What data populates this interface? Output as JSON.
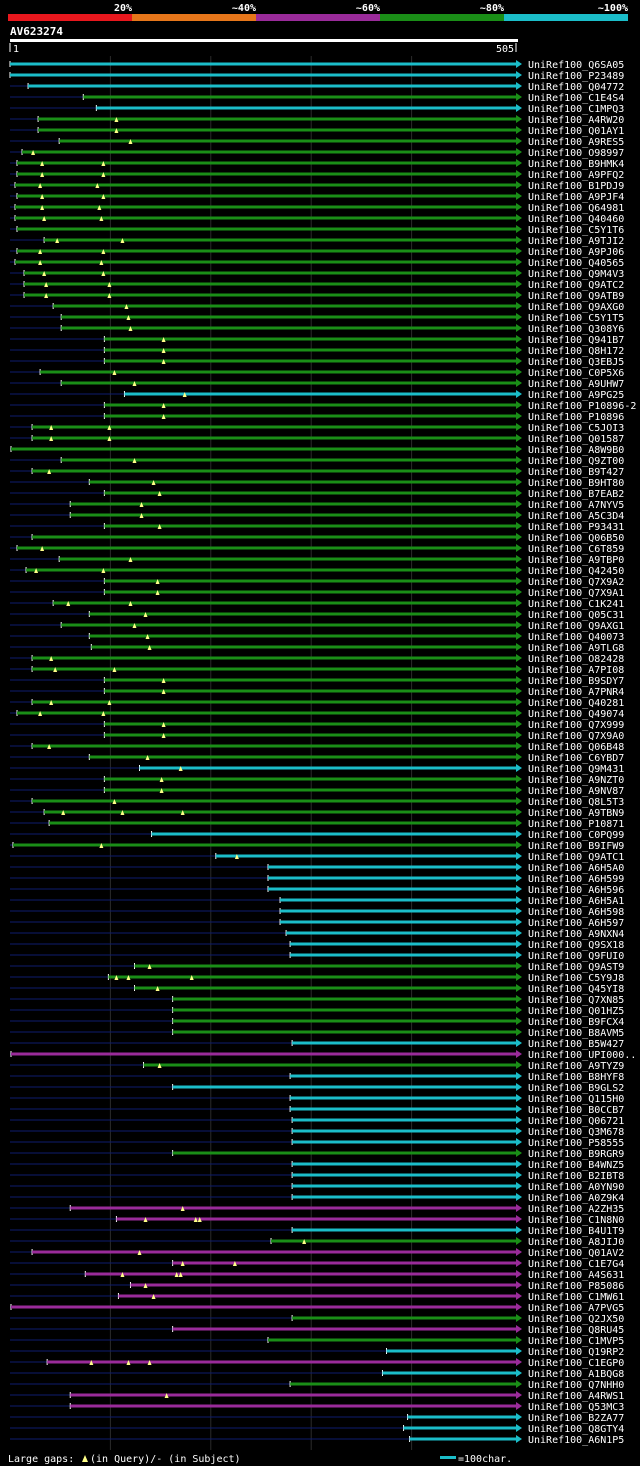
{
  "query": "AV623274",
  "scale": {
    "start": "1",
    "end": "505"
  },
  "identity_legend": [
    {
      "label": "20%",
      "color": "#e8171d"
    },
    {
      "label": "~40%",
      "color": "#e6761a"
    },
    {
      "label": "~60%",
      "color": "#9a2b9a"
    },
    {
      "label": "~80%",
      "color": "#1a8e17"
    },
    {
      "label": "~100%",
      "color": "#1bbdc9"
    }
  ],
  "footer": {
    "gaps_prefix": "Large gaps: ",
    "gaps_query": "(in Query)/",
    "gaps_dash": "-",
    "gaps_subject": " (in Subject)",
    "scale_note": "=100char."
  },
  "chart_data": {
    "type": "alignment-overview",
    "title": "AV623274",
    "x_range": [
      1,
      505
    ],
    "units": "query residue",
    "hits": [
      {
        "id": "UniRef100_Q6SA05",
        "start": 1,
        "end": 505,
        "identity": "~100%"
      },
      {
        "id": "UniRef100_P23489",
        "start": 1,
        "end": 505,
        "identity": "~100%"
      },
      {
        "id": "UniRef100_Q04772",
        "start": 19,
        "end": 505,
        "identity": "~100%"
      },
      {
        "id": "UniRef100_C1E4S4",
        "start": 74,
        "end": 505,
        "identity": "~80%"
      },
      {
        "id": "UniRef100_C1MPQ3",
        "start": 87,
        "end": 505,
        "identity": "~100%"
      },
      {
        "id": "UniRef100_A4RW20",
        "start": 29,
        "end": 505,
        "identity": "~80%",
        "gaps": [
          107
        ]
      },
      {
        "id": "UniRef100_Q01AY1",
        "start": 29,
        "end": 505,
        "identity": "~80%",
        "gaps": [
          107
        ]
      },
      {
        "id": "UniRef100_A9RES5",
        "start": 50,
        "end": 505,
        "identity": "~80%",
        "gaps": [
          121
        ]
      },
      {
        "id": "UniRef100_O98997",
        "start": 13,
        "end": 505,
        "identity": "~80%",
        "gaps": [
          24
        ]
      },
      {
        "id": "UniRef100_B9HMK4",
        "start": 8,
        "end": 505,
        "identity": "~80%",
        "gaps": [
          33,
          94
        ]
      },
      {
        "id": "UniRef100_A9PFQ2",
        "start": 8,
        "end": 505,
        "identity": "~80%",
        "gaps": [
          33,
          94
        ]
      },
      {
        "id": "UniRef100_B1PDJ9",
        "start": 6,
        "end": 505,
        "identity": "~80%",
        "gaps": [
          31,
          88
        ]
      },
      {
        "id": "UniRef100_A9PJF4",
        "start": 8,
        "end": 505,
        "identity": "~80%",
        "gaps": [
          33,
          94
        ]
      },
      {
        "id": "UniRef100_Q64981",
        "start": 6,
        "end": 505,
        "identity": "~80%",
        "gaps": [
          33,
          90
        ]
      },
      {
        "id": "UniRef100_Q40460",
        "start": 6,
        "end": 505,
        "identity": "~80%",
        "gaps": [
          35,
          92
        ]
      },
      {
        "id": "UniRef100_C5Y1T6",
        "start": 8,
        "end": 505,
        "identity": "~80%"
      },
      {
        "id": "UniRef100_A9TJI2",
        "start": 35,
        "end": 505,
        "identity": "~80%",
        "gaps": [
          48,
          113
        ]
      },
      {
        "id": "UniRef100_A9PJ06",
        "start": 8,
        "end": 505,
        "identity": "~80%",
        "gaps": [
          31,
          94
        ]
      },
      {
        "id": "UniRef100_Q40565",
        "start": 6,
        "end": 505,
        "identity": "~80%",
        "gaps": [
          31,
          92
        ]
      },
      {
        "id": "UniRef100_Q9M4V3",
        "start": 15,
        "end": 505,
        "identity": "~80%",
        "gaps": [
          35,
          94
        ]
      },
      {
        "id": "UniRef100_Q9ATC2",
        "start": 15,
        "end": 505,
        "identity": "~80%",
        "gaps": [
          37,
          100
        ]
      },
      {
        "id": "UniRef100_Q9ATB9",
        "start": 15,
        "end": 505,
        "identity": "~80%",
        "gaps": [
          37,
          100
        ]
      },
      {
        "id": "UniRef100_Q9AXG0",
        "start": 44,
        "end": 505,
        "identity": "~80%",
        "gaps": [
          117
        ]
      },
      {
        "id": "UniRef100_C5Y1T5",
        "start": 52,
        "end": 505,
        "identity": "~80%",
        "gaps": [
          119
        ]
      },
      {
        "id": "UniRef100_Q308Y6",
        "start": 52,
        "end": 505,
        "identity": "~80%",
        "gaps": [
          121
        ]
      },
      {
        "id": "UniRef100_Q941B7",
        "start": 95,
        "end": 505,
        "identity": "~80%",
        "gaps": [
          154
        ]
      },
      {
        "id": "UniRef100_Q8H172",
        "start": 95,
        "end": 505,
        "identity": "~80%",
        "gaps": [
          154
        ]
      },
      {
        "id": "UniRef100_Q3EBJ5",
        "start": 95,
        "end": 505,
        "identity": "~80%",
        "gaps": [
          154
        ]
      },
      {
        "id": "UniRef100_C0P5X6",
        "start": 31,
        "end": 505,
        "identity": "~80%",
        "gaps": [
          105
        ]
      },
      {
        "id": "UniRef100_A9UHW7",
        "start": 52,
        "end": 505,
        "identity": "~80%",
        "gaps": [
          125
        ]
      },
      {
        "id": "UniRef100_A9PG25",
        "start": 115,
        "end": 505,
        "identity": "~100%",
        "gaps": [
          175
        ]
      },
      {
        "id": "UniRef100_P10896-2",
        "start": 95,
        "end": 505,
        "identity": "~80%",
        "gaps": [
          154
        ]
      },
      {
        "id": "UniRef100_P10896",
        "start": 95,
        "end": 505,
        "identity": "~80%",
        "gaps": [
          154
        ]
      },
      {
        "id": "UniRef100_C5JOI3",
        "start": 23,
        "end": 505,
        "identity": "~80%",
        "gaps": [
          42,
          100
        ]
      },
      {
        "id": "UniRef100_Q01587",
        "start": 23,
        "end": 505,
        "identity": "~80%",
        "gaps": [
          42,
          100
        ]
      },
      {
        "id": "UniRef100_A8W9B0",
        "start": 2,
        "end": 505,
        "identity": "~80%"
      },
      {
        "id": "UniRef100_Q9ZT00",
        "start": 52,
        "end": 505,
        "identity": "~80%",
        "gaps": [
          125
        ]
      },
      {
        "id": "UniRef100_B9T427",
        "start": 23,
        "end": 505,
        "identity": "~80%",
        "gaps": [
          40
        ]
      },
      {
        "id": "UniRef100_B9HT80",
        "start": 80,
        "end": 505,
        "identity": "~80%",
        "gaps": [
          144
        ]
      },
      {
        "id": "UniRef100_B7EAB2",
        "start": 95,
        "end": 505,
        "identity": "~80%",
        "gaps": [
          150
        ]
      },
      {
        "id": "UniRef100_A7NYV5",
        "start": 61,
        "end": 505,
        "identity": "~80%",
        "gaps": [
          132
        ]
      },
      {
        "id": "UniRef100_A5C3D4",
        "start": 61,
        "end": 505,
        "identity": "~80%",
        "gaps": [
          132
        ]
      },
      {
        "id": "UniRef100_P93431",
        "start": 95,
        "end": 505,
        "identity": "~80%",
        "gaps": [
          150
        ]
      },
      {
        "id": "UniRef100_Q06B50",
        "start": 23,
        "end": 505,
        "identity": "~80%"
      },
      {
        "id": "UniRef100_C6T859",
        "start": 8,
        "end": 505,
        "identity": "~80%",
        "gaps": [
          33
        ]
      },
      {
        "id": "UniRef100_A9TBP0",
        "start": 50,
        "end": 505,
        "identity": "~80%",
        "gaps": [
          121
        ]
      },
      {
        "id": "UniRef100_Q42450",
        "start": 17,
        "end": 505,
        "identity": "~80%",
        "gaps": [
          27,
          94
        ]
      },
      {
        "id": "UniRef100_Q7X9A2",
        "start": 95,
        "end": 505,
        "identity": "~80%",
        "gaps": [
          148
        ]
      },
      {
        "id": "UniRef100_Q7X9A1",
        "start": 95,
        "end": 505,
        "identity": "~80%",
        "gaps": [
          148
        ]
      },
      {
        "id": "UniRef100_C1K241",
        "start": 44,
        "end": 505,
        "identity": "~80%",
        "gaps": [
          59,
          121
        ]
      },
      {
        "id": "UniRef100_Q05C31",
        "start": 80,
        "end": 505,
        "identity": "~80%",
        "gaps": [
          136
        ]
      },
      {
        "id": "UniRef100_Q9AXG1",
        "start": 52,
        "end": 505,
        "identity": "~80%",
        "gaps": [
          125
        ]
      },
      {
        "id": "UniRef100_Q40073",
        "start": 80,
        "end": 505,
        "identity": "~80%",
        "gaps": [
          138
        ]
      },
      {
        "id": "UniRef100_A9TLG8",
        "start": 82,
        "end": 505,
        "identity": "~80%",
        "gaps": [
          140
        ]
      },
      {
        "id": "UniRef100_O82428",
        "start": 23,
        "end": 505,
        "identity": "~80%",
        "gaps": [
          42
        ]
      },
      {
        "id": "UniRef100_A7PI08",
        "start": 23,
        "end": 505,
        "identity": "~80%",
        "gaps": [
          46,
          105
        ]
      },
      {
        "id": "UniRef100_B9SDY7",
        "start": 95,
        "end": 505,
        "identity": "~80%",
        "gaps": [
          154
        ]
      },
      {
        "id": "UniRef100_A7PNR4",
        "start": 95,
        "end": 505,
        "identity": "~80%",
        "gaps": [
          154
        ]
      },
      {
        "id": "UniRef100_Q40281",
        "start": 23,
        "end": 505,
        "identity": "~80%",
        "gaps": [
          42,
          100
        ]
      },
      {
        "id": "UniRef100_Q49074",
        "start": 8,
        "end": 505,
        "identity": "~80%",
        "gaps": [
          31,
          94
        ]
      },
      {
        "id": "UniRef100_Q7X999",
        "start": 95,
        "end": 505,
        "identity": "~80%",
        "gaps": [
          154
        ]
      },
      {
        "id": "UniRef100_Q7X9A0",
        "start": 95,
        "end": 505,
        "identity": "~80%",
        "gaps": [
          154
        ]
      },
      {
        "id": "UniRef100_Q06B48",
        "start": 23,
        "end": 505,
        "identity": "~80%",
        "gaps": [
          40
        ]
      },
      {
        "id": "UniRef100_C6YBD7",
        "start": 80,
        "end": 505,
        "identity": "~80%",
        "gaps": [
          138
        ]
      },
      {
        "id": "UniRef100_Q9M431",
        "start": 130,
        "end": 505,
        "identity": "~100%",
        "gaps": [
          171
        ]
      },
      {
        "id": "UniRef100_A9NZT0",
        "start": 95,
        "end": 505,
        "identity": "~80%",
        "gaps": [
          152
        ]
      },
      {
        "id": "UniRef100_A9NV87",
        "start": 95,
        "end": 505,
        "identity": "~80%",
        "gaps": [
          152
        ]
      },
      {
        "id": "UniRef100_Q8L5T3",
        "start": 23,
        "end": 505,
        "identity": "~80%",
        "gaps": [
          105
        ]
      },
      {
        "id": "UniRef100_A9TBN9",
        "start": 35,
        "end": 505,
        "identity": "~80%",
        "gaps": [
          54,
          113,
          173
        ]
      },
      {
        "id": "UniRef100_P10871",
        "start": 40,
        "end": 505,
        "identity": "~80%"
      },
      {
        "id": "UniRef100_C0PQ99",
        "start": 142,
        "end": 505,
        "identity": "~100%"
      },
      {
        "id": "UniRef100_B9IFW9",
        "start": 4,
        "end": 505,
        "identity": "~80%",
        "gaps": [
          92
        ]
      },
      {
        "id": "UniRef100_Q9ATC1",
        "start": 206,
        "end": 505,
        "identity": "~100%",
        "gaps": [
          227
        ]
      },
      {
        "id": "UniRef100_A6H5A0",
        "start": 258,
        "end": 505,
        "identity": "~100%"
      },
      {
        "id": "UniRef100_A6H599",
        "start": 258,
        "end": 505,
        "identity": "~100%"
      },
      {
        "id": "UniRef100_A6H596",
        "start": 258,
        "end": 505,
        "identity": "~100%"
      },
      {
        "id": "UniRef100_A6H5A1",
        "start": 270,
        "end": 505,
        "identity": "~100%"
      },
      {
        "id": "UniRef100_A6H598",
        "start": 270,
        "end": 505,
        "identity": "~100%"
      },
      {
        "id": "UniRef100_A6H597",
        "start": 270,
        "end": 505,
        "identity": "~100%"
      },
      {
        "id": "UniRef100_A9NXN4",
        "start": 276,
        "end": 505,
        "identity": "~100%"
      },
      {
        "id": "UniRef100_Q9SX18",
        "start": 280,
        "end": 505,
        "identity": "~100%"
      },
      {
        "id": "UniRef100_Q9FUI0",
        "start": 280,
        "end": 505,
        "identity": "~100%"
      },
      {
        "id": "UniRef100_Q9AST9",
        "start": 125,
        "end": 505,
        "identity": "~80%",
        "gaps": [
          140
        ]
      },
      {
        "id": "UniRef100_C5Y9J8",
        "start": 99,
        "end": 505,
        "identity": "~80%",
        "gaps": [
          107,
          119,
          182
        ]
      },
      {
        "id": "UniRef100_Q45YI8",
        "start": 125,
        "end": 505,
        "identity": "~80%",
        "gaps": [
          148
        ]
      },
      {
        "id": "UniRef100_Q7XN85",
        "start": 163,
        "end": 505,
        "identity": "~80%"
      },
      {
        "id": "UniRef100_Q01HZ5",
        "start": 163,
        "end": 505,
        "identity": "~80%"
      },
      {
        "id": "UniRef100_B9FCX4",
        "start": 163,
        "end": 505,
        "identity": "~80%"
      },
      {
        "id": "UniRef100_B8AVM5",
        "start": 163,
        "end": 505,
        "identity": "~80%"
      },
      {
        "id": "UniRef100_B5W427",
        "start": 282,
        "end": 505,
        "identity": "~100%"
      },
      {
        "id": "UniRef100_UPI000..",
        "start": 2,
        "end": 505,
        "identity": "~60%"
      },
      {
        "id": "UniRef100_A9TYZ9",
        "start": 134,
        "end": 505,
        "identity": "~80%",
        "gaps": [
          150
        ]
      },
      {
        "id": "UniRef100_B8HYF8",
        "start": 280,
        "end": 505,
        "identity": "~100%"
      },
      {
        "id": "UniRef100_B9GLS2",
        "start": 163,
        "end": 505,
        "identity": "~100%"
      },
      {
        "id": "UniRef100_Q115H0",
        "start": 280,
        "end": 505,
        "identity": "~100%"
      },
      {
        "id": "UniRef100_B0CCB7",
        "start": 280,
        "end": 505,
        "identity": "~100%"
      },
      {
        "id": "UniRef100_Q06721",
        "start": 282,
        "end": 505,
        "identity": "~100%"
      },
      {
        "id": "UniRef100_Q3M678",
        "start": 282,
        "end": 505,
        "identity": "~100%"
      },
      {
        "id": "UniRef100_P58555",
        "start": 282,
        "end": 505,
        "identity": "~100%"
      },
      {
        "id": "UniRef100_B9RGR9",
        "start": 163,
        "end": 505,
        "identity": "~80%"
      },
      {
        "id": "UniRef100_B4WNZ5",
        "start": 282,
        "end": 505,
        "identity": "~100%"
      },
      {
        "id": "UniRef100_B2IBT8",
        "start": 282,
        "end": 505,
        "identity": "~100%"
      },
      {
        "id": "UniRef100_A0YN90",
        "start": 282,
        "end": 505,
        "identity": "~100%"
      },
      {
        "id": "UniRef100_A0Z9K4",
        "start": 282,
        "end": 505,
        "identity": "~100%"
      },
      {
        "id": "UniRef100_A2ZH35",
        "start": 61,
        "end": 505,
        "identity": "~60%",
        "gaps": [
          173
        ]
      },
      {
        "id": "UniRef100_C1N8N0",
        "start": 107,
        "end": 505,
        "identity": "~60%",
        "gaps": [
          136,
          186,
          190
        ]
      },
      {
        "id": "UniRef100_B4U1T9",
        "start": 282,
        "end": 505,
        "identity": "~100%"
      },
      {
        "id": "UniRef100_A8JIJ0",
        "start": 261,
        "end": 505,
        "identity": "~80%",
        "gaps": [
          294
        ]
      },
      {
        "id": "UniRef100_Q01AV2",
        "start": 23,
        "end": 505,
        "identity": "~60%",
        "gaps": [
          130
        ]
      },
      {
        "id": "UniRef100_C1E7G4",
        "start": 163,
        "end": 505,
        "identity": "~60%",
        "gaps": [
          173,
          225
        ]
      },
      {
        "id": "UniRef100_A4S631",
        "start": 76,
        "end": 505,
        "identity": "~60%",
        "gaps": [
          113,
          167,
          171
        ]
      },
      {
        "id": "UniRef100_P85086",
        "start": 121,
        "end": 505,
        "identity": "~60%",
        "gaps": [
          136
        ]
      },
      {
        "id": "UniRef100_C1MW61",
        "start": 109,
        "end": 505,
        "identity": "~60%",
        "gaps": [
          144
        ]
      },
      {
        "id": "UniRef100_A7PVG5",
        "start": 2,
        "end": 505,
        "identity": "~60%"
      },
      {
        "id": "UniRef100_Q2JX50",
        "start": 282,
        "end": 505,
        "identity": "~80%"
      },
      {
        "id": "UniRef100_Q8RU45",
        "start": 163,
        "end": 505,
        "identity": "~60%"
      },
      {
        "id": "UniRef100_C1MVP5",
        "start": 258,
        "end": 505,
        "identity": "~80%"
      },
      {
        "id": "UniRef100_Q19RP2",
        "start": 376,
        "end": 505,
        "identity": "~100%"
      },
      {
        "id": "UniRef100_C1EGP0",
        "start": 38,
        "end": 505,
        "identity": "~60%",
        "gaps": [
          82,
          119,
          140
        ]
      },
      {
        "id": "UniRef100_A1BQG8",
        "start": 372,
        "end": 505,
        "identity": "~100%"
      },
      {
        "id": "UniRef100_Q7NHH0",
        "start": 280,
        "end": 505,
        "identity": "~80%"
      },
      {
        "id": "UniRef100_A4RWS1",
        "start": 61,
        "end": 505,
        "identity": "~60%",
        "gaps": [
          157
        ]
      },
      {
        "id": "UniRef100_Q53MC3",
        "start": 61,
        "end": 505,
        "identity": "~60%"
      },
      {
        "id": "UniRef100_B2ZA77",
        "start": 397,
        "end": 505,
        "identity": "~100%"
      },
      {
        "id": "UniRef100_Q8GTY4",
        "start": 393,
        "end": 505,
        "identity": "~100%"
      },
      {
        "id": "UniRef100_A6N1P5",
        "start": 399,
        "end": 505,
        "identity": "~100%"
      }
    ]
  },
  "colors": {
    "~100%": "#1bbdc9",
    "~80%": "#1a8e17",
    "~60%": "#9a2b9a",
    "~40%": "#e6761a",
    "20%": "#e8171d",
    "gap": "#ffff88",
    "grid": "#2b2b2b",
    "unaligned": "#0e1c6e"
  }
}
